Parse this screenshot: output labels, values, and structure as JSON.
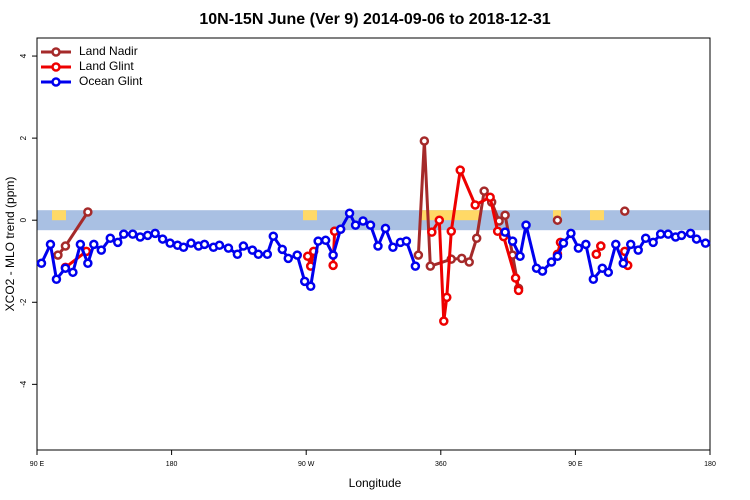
{
  "chart_data": {
    "type": "line",
    "title": "10N-15N June (Ver 9)   2014-09-06 to 2018-12-31",
    "x_label": "Longitude",
    "y_label": "XCO2 - MLO trend (ppm)",
    "xlim": [
      90,
      540
    ],
    "ylim": [
      -5.6,
      4.44
    ],
    "xticks": [
      {
        "value": 90,
        "label": "90 E"
      },
      180,
      {
        "value": 270,
        "label": "90 W"
      },
      360,
      {
        "value": 450,
        "label": "90 E"
      },
      {
        "value": 540,
        "label": "180"
      }
    ],
    "yticks": [
      -4,
      -2,
      0,
      2,
      4
    ],
    "legend": "top-left",
    "series": [
      {
        "name": "Land Nadir",
        "color": "#a52a2a",
        "x": [
          104,
          109,
          124,
          null,
          289,
          293,
          null,
          345,
          349,
          353,
          367,
          374,
          379,
          384,
          389,
          394,
          399,
          403,
          408,
          412,
          null,
          438,
          null,
          464,
          467,
          null,
          483
        ],
        "values": [
          -0.85,
          -0.63,
          0.2,
          null,
          -0.27,
          -0.22,
          null,
          -0.85,
          1.93,
          -1.12,
          -0.95,
          -0.93,
          -1.02,
          -0.44,
          0.71,
          0.44,
          -0.02,
          0.12,
          -0.85,
          -1.66,
          null,
          0.0,
          null,
          -0.83,
          -0.63,
          null,
          0.22
        ]
      },
      {
        "name": "Land Glint",
        "color": "#ee0000",
        "x": [
          109,
          123,
          null,
          271,
          273,
          275,
          null,
          288,
          289,
          null,
          354,
          359,
          362,
          364,
          367,
          373,
          383,
          393,
          398,
          402,
          410,
          412,
          null,
          438,
          440,
          null,
          464,
          467,
          null,
          483,
          485
        ],
        "values": [
          -1.15,
          -0.76,
          null,
          -0.88,
          -1.12,
          -0.76,
          null,
          -1.1,
          -0.27,
          null,
          -0.29,
          0.0,
          -2.46,
          -1.88,
          -0.27,
          1.22,
          0.37,
          0.56,
          -0.27,
          -0.4,
          -1.41,
          -1.71,
          null,
          -0.83,
          -0.54,
          null,
          -0.83,
          -0.63,
          null,
          -0.76,
          -1.1
        ]
      },
      {
        "name": "Ocean Glint",
        "color": "#0000ee",
        "x": [
          93,
          99,
          103,
          109,
          114,
          119,
          124,
          128,
          133,
          139,
          144,
          148,
          154,
          159,
          164,
          169,
          174,
          179,
          184,
          188,
          193,
          198,
          202,
          208,
          212,
          218,
          224,
          228,
          234,
          238,
          244,
          248,
          254,
          258,
          264,
          269,
          273,
          278,
          283,
          288,
          293,
          299,
          303,
          308,
          313,
          318,
          323,
          328,
          333,
          337,
          343,
          null,
          403,
          408,
          413,
          417,
          424,
          428,
          434,
          438,
          442,
          447,
          452,
          457,
          462,
          468,
          472,
          477,
          482,
          487,
          492,
          497,
          502,
          507,
          512,
          517,
          521,
          527,
          531,
          537
        ],
        "values": [
          -1.05,
          -0.59,
          -1.44,
          -1.17,
          -1.27,
          -0.59,
          -1.05,
          -0.59,
          -0.73,
          -0.44,
          -0.54,
          -0.34,
          -0.34,
          -0.41,
          -0.37,
          -0.32,
          -0.46,
          -0.56,
          -0.61,
          -0.66,
          -0.56,
          -0.63,
          -0.59,
          -0.66,
          -0.61,
          -0.68,
          -0.83,
          -0.63,
          -0.73,
          -0.83,
          -0.83,
          -0.39,
          -0.71,
          -0.93,
          -0.85,
          -1.49,
          -1.61,
          -0.51,
          -0.49,
          -0.85,
          -0.22,
          0.17,
          -0.12,
          -0.02,
          -0.12,
          -0.63,
          -0.2,
          -0.66,
          -0.54,
          -0.51,
          -1.12,
          null,
          -0.29,
          -0.51,
          -0.88,
          -0.12,
          -1.17,
          -1.24,
          -1.02,
          -0.88,
          -0.56,
          -0.32,
          -0.68,
          -0.59,
          -1.44,
          -1.17,
          -1.27,
          -0.59,
          -1.05,
          -0.59,
          -0.73,
          -0.44,
          -0.54,
          -0.34,
          -0.34,
          -0.41,
          -0.37,
          -0.32,
          -0.46,
          -0.56
        ]
      }
    ]
  }
}
